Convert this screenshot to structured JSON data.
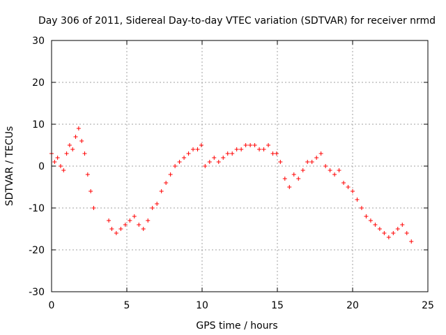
{
  "chart_data": {
    "type": "scatter",
    "title": "Day 306 of 2011, Sidereal Day-to-day VTEC variation (SDTVAR) for receiver nrmd",
    "xlabel": "GPS time / hours",
    "ylabel": "SDTVAR / TECUs",
    "xlim": [
      0,
      25
    ],
    "ylim": [
      -30,
      30
    ],
    "x_ticks": [
      0,
      5,
      10,
      15,
      20,
      25
    ],
    "y_ticks": [
      -30,
      -20,
      -10,
      0,
      10,
      20,
      30
    ],
    "x_tick_labels": [
      "0",
      "5",
      "10",
      "15",
      "20",
      "25"
    ],
    "y_tick_labels": [
      "-30",
      "-20",
      "-10",
      "0",
      "10",
      "20",
      "30"
    ],
    "grid": true,
    "marker": "+",
    "series_color": "#ff0000",
    "series": [
      {
        "name": "SDTVAR",
        "x": [
          0.0,
          0.2,
          0.4,
          0.6,
          0.8,
          1.0,
          1.2,
          1.4,
          1.6,
          1.8,
          2.0,
          2.2,
          2.4,
          2.6,
          2.8,
          3.8,
          4.0,
          4.3,
          4.6,
          4.9,
          5.2,
          5.5,
          5.8,
          6.1,
          6.4,
          6.7,
          7.0,
          7.3,
          7.6,
          7.9,
          8.2,
          8.5,
          8.8,
          9.1,
          9.4,
          9.7,
          9.95,
          10.2,
          10.5,
          10.8,
          11.1,
          11.4,
          11.7,
          12.0,
          12.3,
          12.6,
          12.9,
          13.2,
          13.5,
          13.8,
          14.1,
          14.4,
          14.7,
          14.95,
          15.2,
          15.5,
          15.8,
          16.1,
          16.4,
          16.7,
          17.0,
          17.3,
          17.6,
          17.9,
          18.2,
          18.5,
          18.8,
          19.1,
          19.4,
          19.7,
          20.0,
          20.3,
          20.6,
          20.9,
          21.2,
          21.5,
          21.8,
          22.1,
          22.4,
          22.7,
          23.0,
          23.3,
          23.6,
          23.9
        ],
        "y": [
          3,
          1,
          2,
          0,
          -1,
          3,
          5,
          4,
          7,
          9,
          6,
          3,
          -2,
          -6,
          -10,
          -13,
          -15,
          -16,
          -15,
          -14,
          -13,
          -12,
          -14,
          -15,
          -13,
          -10,
          -9,
          -6,
          -4,
          -2,
          0,
          1,
          2,
          3,
          4,
          4,
          5,
          0,
          1,
          2,
          1,
          2,
          3,
          3,
          4,
          4,
          5,
          5,
          5,
          4,
          4,
          5,
          3,
          3,
          1,
          -3,
          -5,
          -2,
          -3,
          -1,
          1,
          1,
          2,
          3,
          0,
          -1,
          -2,
          -1,
          -4,
          -5,
          -6,
          -8,
          -10,
          -12,
          -13,
          -14,
          -15,
          -16,
          -17,
          -16,
          -15,
          -14,
          -16,
          -18
        ]
      }
    ]
  }
}
